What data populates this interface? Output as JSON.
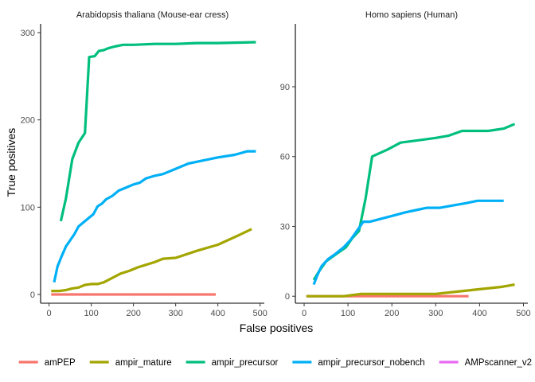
{
  "chart_data": {
    "type": "line",
    "xlabel": "False positives",
    "ylabel": "True positives",
    "legend_position": "bottom",
    "grid": false,
    "legend": [
      {
        "name": "amPEP",
        "color": "#F8766D"
      },
      {
        "name": "ampir_mature",
        "color": "#A3A500"
      },
      {
        "name": "ampir_precursor",
        "color": "#00BF7D"
      },
      {
        "name": "ampir_precursor_nobench",
        "color": "#00B0F6"
      },
      {
        "name": "AMPscanner_v2",
        "color": "#E76BF3"
      }
    ],
    "panels": [
      {
        "title": "Arabidopsis thaliana (Mouse-ear cress)",
        "xlim": [
          -20,
          510
        ],
        "ylim": [
          -10,
          310
        ],
        "xticks": [
          0,
          100,
          200,
          300,
          400,
          500
        ],
        "yticks": [
          0,
          100,
          200,
          300
        ],
        "series": [
          {
            "name": "amPEP",
            "color": "#F8766D",
            "points": [
              [
                5,
                0
              ],
              [
                100,
                0
              ],
              [
                200,
                0
              ],
              [
                300,
                0
              ],
              [
                395,
                0
              ]
            ]
          },
          {
            "name": "ampir_mature",
            "color": "#A3A500",
            "points": [
              [
                5,
                4
              ],
              [
                25,
                4
              ],
              [
                40,
                5
              ],
              [
                55,
                7
              ],
              [
                70,
                8
              ],
              [
                85,
                11
              ],
              [
                100,
                12
              ],
              [
                115,
                12
              ],
              [
                130,
                14
              ],
              [
                150,
                19
              ],
              [
                170,
                24
              ],
              [
                190,
                27
              ],
              [
                210,
                31
              ],
              [
                230,
                34
              ],
              [
                250,
                37
              ],
              [
                270,
                41
              ],
              [
                300,
                42
              ],
              [
                350,
                50
              ],
              [
                400,
                57
              ],
              [
                450,
                68
              ],
              [
                480,
                75
              ]
            ]
          },
          {
            "name": "ampir_precursor",
            "color": "#00BF7D",
            "points": [
              [
                28,
                84
              ],
              [
                40,
                110
              ],
              [
                55,
                155
              ],
              [
                70,
                174
              ],
              [
                85,
                185
              ],
              [
                95,
                272
              ],
              [
                108,
                273
              ],
              [
                118,
                279
              ],
              [
                130,
                280
              ],
              [
                140,
                282
              ],
              [
                155,
                284
              ],
              [
                175,
                286
              ],
              [
                200,
                286
              ],
              [
                250,
                287
              ],
              [
                300,
                287
              ],
              [
                350,
                288
              ],
              [
                400,
                288
              ],
              [
                490,
                289
              ]
            ]
          },
          {
            "name": "ampir_precursor_nobench",
            "color": "#00B0F6",
            "points": [
              [
                12,
                14
              ],
              [
                20,
                32
              ],
              [
                30,
                44
              ],
              [
                40,
                55
              ],
              [
                50,
                62
              ],
              [
                60,
                69
              ],
              [
                70,
                78
              ],
              [
                85,
                84
              ],
              [
                95,
                88
              ],
              [
                105,
                92
              ],
              [
                115,
                101
              ],
              [
                125,
                104
              ],
              [
                135,
                109
              ],
              [
                150,
                113
              ],
              [
                165,
                119
              ],
              [
                185,
                123
              ],
              [
                200,
                126
              ],
              [
                215,
                128
              ],
              [
                230,
                133
              ],
              [
                250,
                136
              ],
              [
                270,
                138
              ],
              [
                300,
                144
              ],
              [
                330,
                150
              ],
              [
                360,
                153
              ],
              [
                400,
                157
              ],
              [
                440,
                160
              ],
              [
                470,
                164
              ],
              [
                490,
                164
              ]
            ]
          },
          {
            "name": "AMPscanner_v2",
            "color": "#E76BF3",
            "points": []
          }
        ]
      },
      {
        "title": "Homo sapiens (Human)",
        "xlim": [
          -20,
          510
        ],
        "ylim": [
          -3,
          117
        ],
        "xticks": [
          0,
          100,
          200,
          300,
          400,
          500
        ],
        "yticks": [
          0,
          30,
          60,
          90
        ],
        "series": [
          {
            "name": "amPEP",
            "color": "#F8766D",
            "points": [
              [
                5,
                0
              ],
              [
                100,
                0
              ],
              [
                200,
                0
              ],
              [
                300,
                0
              ],
              [
                375,
                0
              ]
            ]
          },
          {
            "name": "ampir_mature",
            "color": "#A3A500",
            "points": [
              [
                5,
                0
              ],
              [
                60,
                0
              ],
              [
                90,
                0
              ],
              [
                130,
                1
              ],
              [
                200,
                1
              ],
              [
                250,
                1
              ],
              [
                300,
                1
              ],
              [
                350,
                2
              ],
              [
                400,
                3
              ],
              [
                450,
                4
              ],
              [
                480,
                5
              ]
            ]
          },
          {
            "name": "ampir_precursor",
            "color": "#00BF7D",
            "points": [
              [
                22,
                7
              ],
              [
                35,
                11
              ],
              [
                50,
                15
              ],
              [
                65,
                17
              ],
              [
                80,
                19
              ],
              [
                95,
                21
              ],
              [
                110,
                25
              ],
              [
                125,
                28
              ],
              [
                140,
                42
              ],
              [
                155,
                60
              ],
              [
                190,
                63
              ],
              [
                220,
                66
              ],
              [
                260,
                67
              ],
              [
                300,
                68
              ],
              [
                330,
                69
              ],
              [
                360,
                71
              ],
              [
                420,
                71
              ],
              [
                455,
                72
              ],
              [
                480,
                74
              ]
            ]
          },
          {
            "name": "ampir_precursor_nobench",
            "color": "#00B0F6",
            "points": [
              [
                22,
                5
              ],
              [
                30,
                9
              ],
              [
                40,
                13
              ],
              [
                55,
                16
              ],
              [
                70,
                18
              ],
              [
                90,
                21
              ],
              [
                105,
                24
              ],
              [
                120,
                28
              ],
              [
                135,
                32
              ],
              [
                150,
                32
              ],
              [
                170,
                33
              ],
              [
                190,
                34
              ],
              [
                210,
                35
              ],
              [
                230,
                36
              ],
              [
                255,
                37
              ],
              [
                280,
                38
              ],
              [
                310,
                38
              ],
              [
                340,
                39
              ],
              [
                370,
                40
              ],
              [
                395,
                41
              ],
              [
                430,
                41
              ],
              [
                455,
                41
              ]
            ]
          },
          {
            "name": "AMPscanner_v2",
            "color": "#E76BF3",
            "points": []
          }
        ]
      }
    ]
  }
}
